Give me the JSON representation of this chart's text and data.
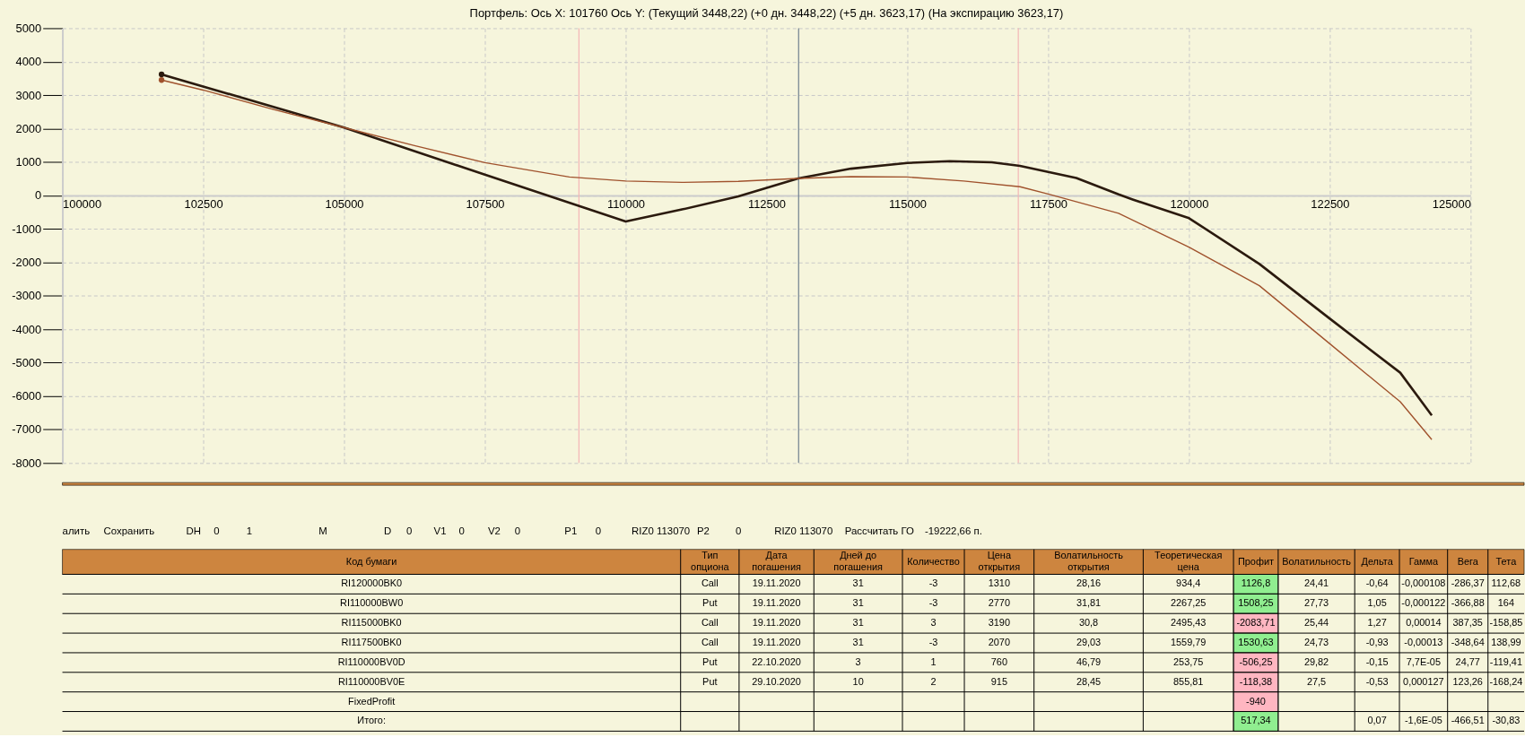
{
  "chart_data": [
    {
      "type": "line",
      "title": "Портфель: Ось X: 101760 Ось Y:  (Текущий 3448,22)  (+0 дн. 3448,22)  (+5 дн. 3623,17)  (На экспирацию 3623,17)",
      "xlim": [
        100000,
        125000
      ],
      "xticks": [
        100000,
        102500,
        105000,
        107500,
        110000,
        112500,
        115000,
        117500,
        120000,
        122500,
        125000
      ],
      "ylim": [
        -8000,
        5000
      ],
      "yticks": [
        -8000,
        -7000,
        -6000,
        -5000,
        -4000,
        -3000,
        -2000,
        -1000,
        0,
        1000,
        2000,
        3000,
        4000,
        5000
      ],
      "grid": true,
      "series": [
        {
          "type": "line",
          "color": "#2b1a0e",
          "x": [
            101760,
            105000,
            107500,
            110000,
            111000,
            112000,
            113061,
            114000,
            115000,
            115750,
            116500,
            117000,
            118000,
            118750,
            119000,
            120000,
            121250,
            122500,
            123750,
            124310
          ],
          "values": [
            3620,
            2030,
            620,
            -780,
            -420,
            -30,
            506,
            800,
            970,
            1026,
            990,
            881,
            520,
            30,
            -120,
            -680,
            -2050,
            -3685,
            -5300,
            -6575
          ]
        },
        {
          "type": "line",
          "color": "#a0522d",
          "x": [
            101760,
            102500,
            103750,
            105000,
            106250,
            107500,
            109000,
            110000,
            111000,
            112000,
            113061,
            114000,
            115000,
            116000,
            117000,
            117500,
            118750,
            120000,
            121250,
            122500,
            123750,
            124310
          ],
          "values": [
            3450,
            3150,
            2570,
            2030,
            1490,
            980,
            550,
            430,
            390,
            420,
            506,
            563,
            550,
            430,
            260,
            43,
            -535,
            -1546,
            -2700,
            -4436,
            -6170,
            -7300
          ]
        },
        {
          "type": "scatter",
          "color": "#2b1a0e",
          "x": [
            101760
          ],
          "values": [
            3620
          ]
        },
        {
          "type": "scatter",
          "color": "#a0522d",
          "x": [
            101760
          ],
          "values": [
            3450
          ]
        }
      ],
      "ref_lines": [
        {
          "axis": "x",
          "value": 109170,
          "color": "#f4b6b6"
        },
        {
          "axis": "x",
          "value": 116970,
          "color": "#f4b6b6"
        },
        {
          "axis": "x",
          "value": 113070,
          "color": "#6f7f8f"
        }
      ]
    },
    {
      "type": "other",
      "annotations": [
        "алить",
        "Сохранить",
        "DH",
        "0",
        "1",
        "M",
        "D",
        "0",
        "V1",
        "0",
        "V2",
        "0",
        "P1",
        "0",
        "RIZ0 113070",
        "P2",
        "0",
        "RIZ0 113070",
        "Рассчитать ГО",
        "-19222,66 п.",
        "Код бумаги",
        "Тип\nопциона",
        "Дата\nпогашения",
        "Дней до\nпогашения",
        "Количество",
        "Цена\nоткрытия",
        "Волатильность\nоткрытия",
        "Теоретическая\nцена",
        "Профит",
        "Волатильность",
        "Дельта",
        "Гамма",
        "Вега",
        "Тета",
        "RI120000BK0",
        "Call",
        "19.11.2020",
        "31",
        "-3",
        "1310",
        "28,16",
        "934,4",
        "1126,8",
        "24,41",
        "-0,64",
        "-0,000108",
        "-286,37",
        "112,68",
        "RI110000BW0",
        "Put",
        "19.11.2020",
        "31",
        "-3",
        "2770",
        "31,81",
        "2267,25",
        "1508,25",
        "27,73",
        "1,05",
        "-0,000122",
        "-366,88",
        "164",
        "RI115000BK0",
        "Call",
        "19.11.2020",
        "31",
        "3",
        "3190",
        "30,8",
        "2495,43",
        "-2083,71",
        "25,44",
        "1,27",
        "0,00014",
        "387,35",
        "-158,85",
        "RI117500BK0",
        "Call",
        "19.11.2020",
        "31",
        "-3",
        "2070",
        "29,03",
        "1559,79",
        "1530,63",
        "24,73",
        "-0,93",
        "-0,00013",
        "-348,64",
        "138,99",
        "RI110000BV0D",
        "Put",
        "22.10.2020",
        "3",
        "1",
        "760",
        "46,79",
        "253,75",
        "-506,25",
        "29,82",
        "-0,15",
        "7,7E-05",
        "24,77",
        "-119,41",
        "RI110000BV0E",
        "Put",
        "29.10.2020",
        "10",
        "2",
        "915",
        "28,45",
        "855,81",
        "-118,38",
        "27,5",
        "-0,53",
        "0,000127",
        "123,26",
        "-168,24",
        "FixedProfit",
        "-940",
        "Итого:",
        "517,34",
        "0,07",
        "-1,6E-05",
        "-466,51",
        "-30,83"
      ]
    }
  ]
}
